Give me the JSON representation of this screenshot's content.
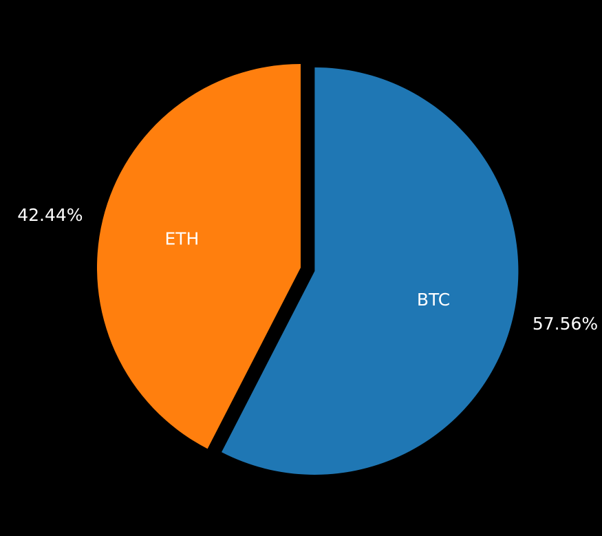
{
  "chart_data": {
    "type": "pie",
    "slices": [
      {
        "label": "BTC",
        "value": 57.56,
        "pct_label": "57.56%",
        "color": "#1f77b4",
        "exploded": true
      },
      {
        "label": "ETH",
        "value": 42.44,
        "pct_label": "42.44%",
        "color": "#ff7f0e",
        "exploded": false
      }
    ],
    "background": "#000000",
    "label_color": "#ffffff",
    "title": ""
  }
}
